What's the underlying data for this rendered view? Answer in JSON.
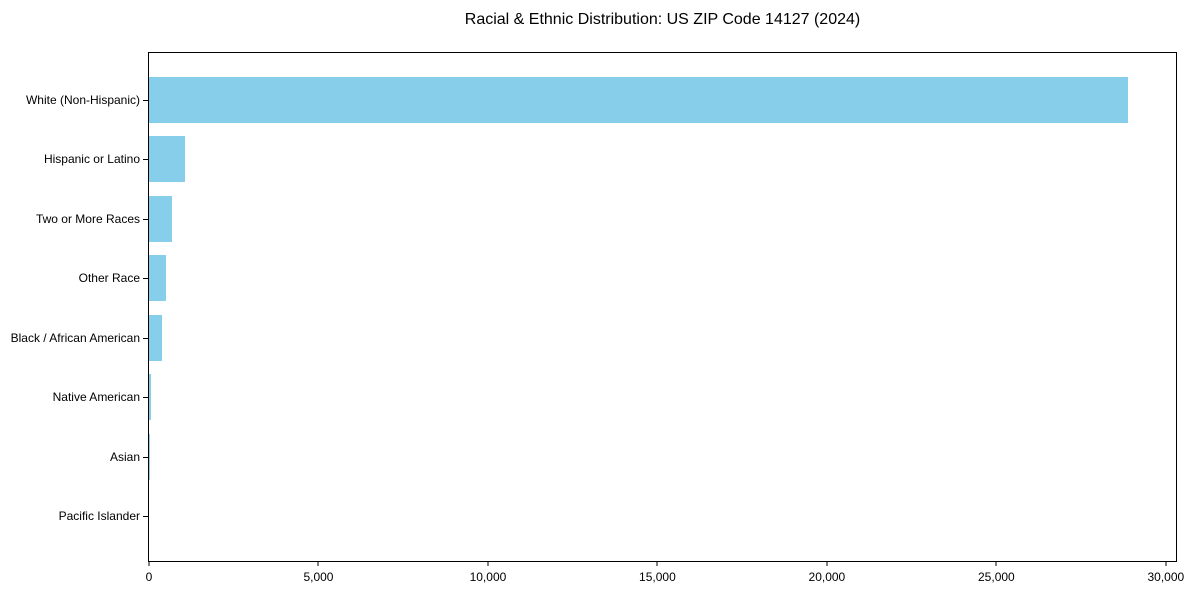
{
  "chart_data": {
    "type": "bar",
    "orientation": "horizontal",
    "title": "Racial & Ethnic Distribution: US ZIP Code 14127 (2024)",
    "categories": [
      "White (Non-Hispanic)",
      "Hispanic or Latino",
      "Two or More Races",
      "Other Race",
      "Black / African American",
      "Native American",
      "Asian",
      "Pacific Islander"
    ],
    "values": [
      28890,
      1055,
      665,
      505,
      370,
      60,
      15,
      0
    ],
    "bar_color": "#87CEEB",
    "xlabel": "",
    "ylabel": "",
    "xlim": [
      0,
      30300
    ],
    "x_ticks": [
      {
        "value": 0,
        "label": "0"
      },
      {
        "value": 5000,
        "label": "5,000"
      },
      {
        "value": 10000,
        "label": "10,000"
      },
      {
        "value": 15000,
        "label": "15,000"
      },
      {
        "value": 20000,
        "label": "20,000"
      },
      {
        "value": 25000,
        "label": "25,000"
      },
      {
        "value": 30000,
        "label": "30,000"
      }
    ],
    "grid": false,
    "legend": null,
    "axis_color": "#000000",
    "background_color": "#ffffff"
  }
}
